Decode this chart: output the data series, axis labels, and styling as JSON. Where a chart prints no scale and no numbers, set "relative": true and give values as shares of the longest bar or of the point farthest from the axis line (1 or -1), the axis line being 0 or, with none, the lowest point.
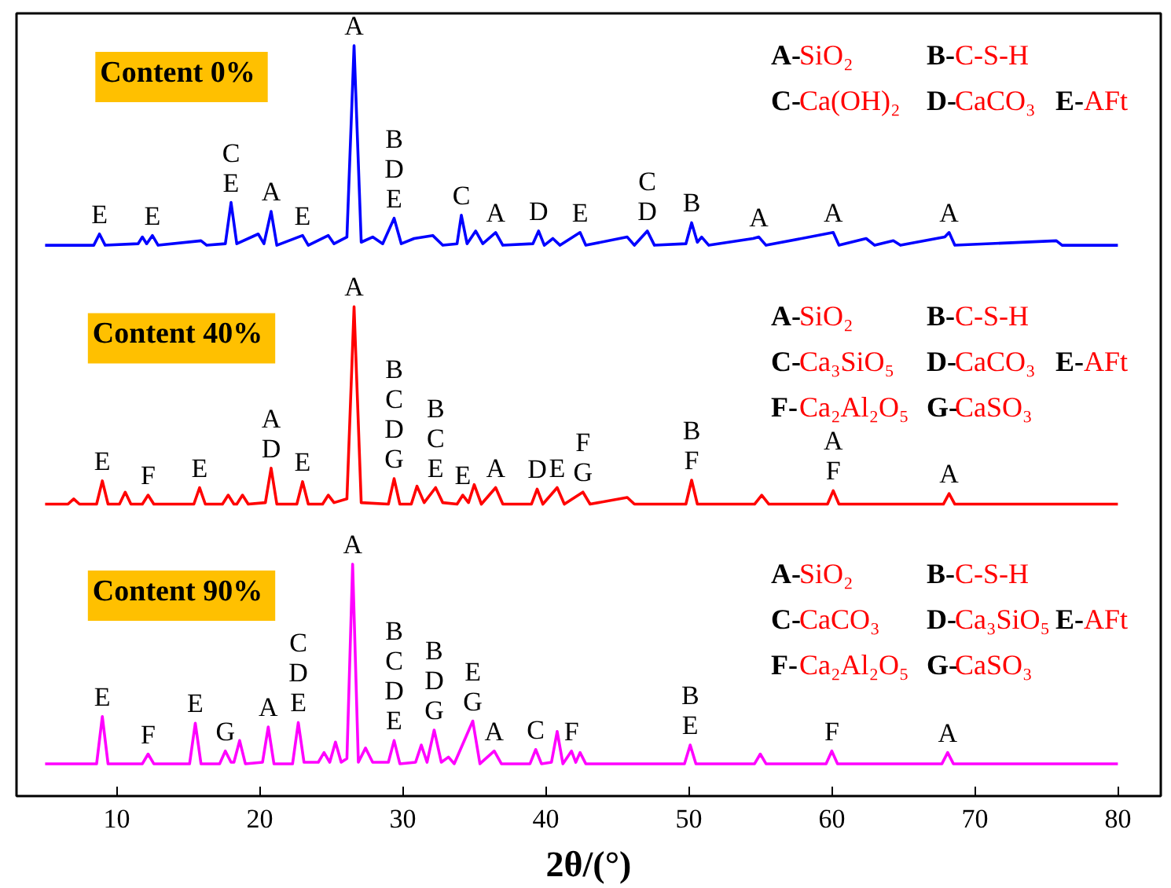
{
  "chart_data": {
    "type": "line",
    "xlabel": "2θ/(°)",
    "relative": true,
    "xlim": [
      3,
      83
    ],
    "xticks": [
      10,
      20,
      30,
      40,
      50,
      60,
      70,
      80
    ],
    "tick_labels": "x",
    "grid": false,
    "series": [
      {
        "color": "#0000ff",
        "x": [
          5.0,
          8.4,
          8.8,
          9.2,
          11.5,
          11.8,
          12.1,
          12.5,
          12.9,
          15.9,
          16.3,
          17.6,
          18.0,
          18.4,
          19.9,
          20.3,
          20.8,
          21.2,
          23.0,
          23.4,
          24.8,
          25.2,
          26.1,
          26.6,
          27.1,
          27.9,
          28.6,
          29.4,
          29.9,
          30.8,
          32.1,
          32.8,
          33.8,
          34.1,
          34.5,
          35.1,
          35.6,
          36.5,
          37.0,
          39.1,
          39.5,
          39.9,
          40.5,
          41.0,
          42.4,
          42.8,
          45.7,
          46.2,
          47.1,
          47.6,
          49.8,
          50.2,
          50.6,
          50.9,
          51.4,
          54.5,
          54.9,
          55.4,
          60.1,
          60.5,
          62.4,
          63.0,
          64.3,
          64.8,
          67.9,
          68.2,
          68.6,
          75.7,
          76.1,
          80.0
        ],
        "values": [
          0.734,
          0.734,
          0.749,
          0.734,
          0.736,
          0.745,
          0.736,
          0.747,
          0.734,
          0.74,
          0.734,
          0.736,
          0.791,
          0.736,
          0.749,
          0.736,
          0.779,
          0.734,
          0.747,
          0.734,
          0.747,
          0.736,
          0.745,
          1.0,
          0.738,
          0.745,
          0.736,
          0.77,
          0.736,
          0.743,
          0.747,
          0.734,
          0.736,
          0.774,
          0.736,
          0.753,
          0.736,
          0.751,
          0.734,
          0.736,
          0.753,
          0.734,
          0.743,
          0.734,
          0.751,
          0.734,
          0.745,
          0.734,
          0.753,
          0.734,
          0.736,
          0.764,
          0.738,
          0.745,
          0.734,
          0.743,
          0.745,
          0.734,
          0.751,
          0.734,
          0.743,
          0.734,
          0.74,
          0.734,
          0.745,
          0.751,
          0.734,
          0.74,
          0.734,
          0.734
        ]
      },
      {
        "color": "#ff0000",
        "x": [
          5.0,
          6.6,
          7.0,
          7.4,
          8.6,
          9.0,
          9.4,
          10.2,
          10.6,
          11.0,
          11.8,
          12.2,
          12.6,
          15.4,
          15.8,
          16.2,
          17.4,
          17.8,
          18.2,
          18.4,
          18.8,
          19.2,
          20.4,
          20.8,
          21.2,
          22.6,
          23.0,
          23.4,
          24.4,
          24.8,
          25.2,
          26.1,
          26.6,
          27.1,
          29.0,
          29.4,
          29.8,
          30.6,
          31.0,
          31.5,
          32.3,
          32.8,
          33.8,
          34.2,
          34.6,
          35.0,
          35.5,
          36.5,
          37.0,
          39.0,
          39.4,
          39.8,
          40.8,
          41.3,
          42.6,
          43.1,
          45.7,
          46.2,
          49.8,
          50.2,
          50.6,
          54.6,
          55.1,
          55.6,
          59.7,
          60.1,
          60.5,
          67.8,
          68.2,
          68.6,
          80.0
        ],
        "values": [
          0.389,
          0.389,
          0.396,
          0.389,
          0.389,
          0.42,
          0.389,
          0.389,
          0.405,
          0.389,
          0.389,
          0.401,
          0.389,
          0.389,
          0.411,
          0.389,
          0.389,
          0.401,
          0.389,
          0.389,
          0.401,
          0.389,
          0.391,
          0.437,
          0.389,
          0.389,
          0.419,
          0.389,
          0.389,
          0.401,
          0.391,
          0.396,
          0.652,
          0.391,
          0.389,
          0.423,
          0.389,
          0.389,
          0.413,
          0.391,
          0.411,
          0.391,
          0.389,
          0.401,
          0.391,
          0.415,
          0.389,
          0.411,
          0.389,
          0.389,
          0.409,
          0.389,
          0.411,
          0.389,
          0.405,
          0.389,
          0.398,
          0.389,
          0.389,
          0.421,
          0.389,
          0.389,
          0.401,
          0.389,
          0.389,
          0.407,
          0.389,
          0.389,
          0.403,
          0.389,
          0.389
        ]
      },
      {
        "color": "#ff00ff",
        "x": [
          5.0,
          8.6,
          9.0,
          9.4,
          11.8,
          12.2,
          12.6,
          15.1,
          15.5,
          15.9,
          17.2,
          17.6,
          18.0,
          18.2,
          18.6,
          19.0,
          20.2,
          20.6,
          21.0,
          22.3,
          22.7,
          23.1,
          24.1,
          24.5,
          24.9,
          25.3,
          25.7,
          26.1,
          26.5,
          26.9,
          27.4,
          27.9,
          29.0,
          29.4,
          29.8,
          30.9,
          31.3,
          31.7,
          32.2,
          32.7,
          33.2,
          33.6,
          34.9,
          35.4,
          36.4,
          36.9,
          38.9,
          39.3,
          39.7,
          40.4,
          40.8,
          41.2,
          41.8,
          42.1,
          42.4,
          42.8,
          49.7,
          50.1,
          50.5,
          54.6,
          55.0,
          55.4,
          59.6,
          60.0,
          60.4,
          67.7,
          68.1,
          68.5,
          80.0
        ],
        "values": [
          0.043,
          0.043,
          0.106,
          0.043,
          0.043,
          0.056,
          0.043,
          0.043,
          0.097,
          0.043,
          0.043,
          0.06,
          0.045,
          0.045,
          0.074,
          0.043,
          0.045,
          0.092,
          0.043,
          0.043,
          0.098,
          0.045,
          0.045,
          0.058,
          0.045,
          0.072,
          0.045,
          0.05,
          0.309,
          0.045,
          0.064,
          0.045,
          0.045,
          0.074,
          0.043,
          0.045,
          0.068,
          0.045,
          0.088,
          0.045,
          0.052,
          0.043,
          0.1,
          0.043,
          0.06,
          0.043,
          0.043,
          0.062,
          0.043,
          0.045,
          0.086,
          0.043,
          0.06,
          0.045,
          0.058,
          0.043,
          0.043,
          0.068,
          0.043,
          0.043,
          0.056,
          0.043,
          0.043,
          0.06,
          0.043,
          0.043,
          0.058,
          0.043,
          0.043
        ]
      }
    ],
    "annotations": [
      "Content 0%",
      "Content 40%",
      "Content 90%",
      "A-SiO₂  B-C-S-H  C-Ca(OH)₂  D-CaCO₃  E-AFt",
      "A-SiO₂  B-C-S-H  C-Ca₃SiO₅  D-CaCO₃  E-AFt  F-Ca₂Al₂O₅  G-CaSO₃",
      "A-SiO₂  B-C-S-H  C-CaCO₃  D-Ca₃SiO₅  E-AFt  F-Ca₂Al₂O₅  G-CaSO₃",
      {
        "text": "E",
        "x": 8.8,
        "y": 0.749
      },
      {
        "text": "E",
        "x": 12.5,
        "y": 0.747
      },
      {
        "text": "C\nE",
        "x": 18.0,
        "y": 0.791
      },
      {
        "text": "A",
        "x": 20.8,
        "y": 0.779
      },
      {
        "text": "E",
        "x": 23.0,
        "y": 0.747
      },
      {
        "text": "A",
        "x": 26.6,
        "y": 1.0
      },
      {
        "text": "B\nD\nE",
        "x": 29.4,
        "y": 0.77
      },
      {
        "text": "C",
        "x": 34.1,
        "y": 0.774
      },
      {
        "text": "A",
        "x": 36.5,
        "y": 0.751
      },
      {
        "text": "D",
        "x": 39.5,
        "y": 0.753
      },
      {
        "text": "E",
        "x": 42.4,
        "y": 0.751
      },
      {
        "text": "C\nD",
        "x": 47.1,
        "y": 0.753
      },
      {
        "text": "B",
        "x": 50.2,
        "y": 0.764
      },
      {
        "text": "A",
        "x": 54.9,
        "y": 0.745
      },
      {
        "text": "A",
        "x": 60.1,
        "y": 0.751
      },
      {
        "text": "A",
        "x": 68.2,
        "y": 0.751
      },
      {
        "text": "E",
        "x": 9.0,
        "y": 0.42
      },
      {
        "text": "F",
        "x": 12.2,
        "y": 0.401
      },
      {
        "text": "E",
        "x": 15.8,
        "y": 0.411
      },
      {
        "text": "A\nD",
        "x": 20.8,
        "y": 0.437
      },
      {
        "text": "E",
        "x": 23.0,
        "y": 0.419
      },
      {
        "text": "A",
        "x": 26.6,
        "y": 0.652
      },
      {
        "text": "B\nC\nD\nG",
        "x": 29.4,
        "y": 0.423
      },
      {
        "text": "B\nC\nE",
        "x": 32.3,
        "y": 0.411
      },
      {
        "text": "E",
        "x": 34.2,
        "y": 0.401
      },
      {
        "text": "A",
        "x": 36.5,
        "y": 0.411
      },
      {
        "text": "D",
        "x": 39.4,
        "y": 0.409
      },
      {
        "text": "E",
        "x": 40.8,
        "y": 0.411
      },
      {
        "text": "F\nG",
        "x": 42.6,
        "y": 0.405
      },
      {
        "text": "B\nF",
        "x": 50.2,
        "y": 0.421
      },
      {
        "text": "A\nF",
        "x": 60.1,
        "y": 0.407
      },
      {
        "text": "A",
        "x": 68.2,
        "y": 0.403
      },
      {
        "text": "E",
        "x": 9.0,
        "y": 0.106
      },
      {
        "text": "F",
        "x": 12.2,
        "y": 0.056
      },
      {
        "text": "E",
        "x": 15.5,
        "y": 0.097
      },
      {
        "text": "G",
        "x": 17.6,
        "y": 0.06
      },
      {
        "text": "A",
        "x": 20.6,
        "y": 0.092
      },
      {
        "text": "C\nD\nE",
        "x": 22.7,
        "y": 0.098
      },
      {
        "text": "A",
        "x": 26.5,
        "y": 0.309
      },
      {
        "text": "B\nC\nD\nE",
        "x": 29.4,
        "y": 0.074
      },
      {
        "text": "B\nD\nG",
        "x": 32.2,
        "y": 0.088
      },
      {
        "text": "E\nG",
        "x": 34.9,
        "y": 0.1
      },
      {
        "text": "A",
        "x": 36.4,
        "y": 0.06
      },
      {
        "text": "C",
        "x": 39.3,
        "y": 0.062
      },
      {
        "text": "F",
        "x": 41.8,
        "y": 0.06
      },
      {
        "text": "B\nE",
        "x": 50.1,
        "y": 0.068
      },
      {
        "text": "F",
        "x": 60.0,
        "y": 0.06
      },
      {
        "text": "A",
        "x": 68.1,
        "y": 0.058
      }
    ]
  }
}
